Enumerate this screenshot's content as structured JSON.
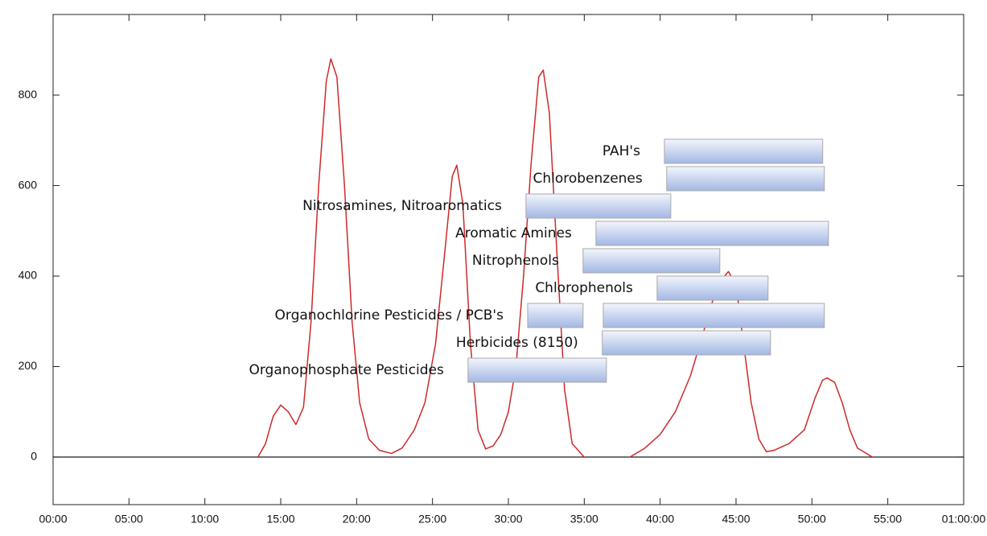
{
  "chart_data": [
    {
      "type": "line",
      "color": "#cc2a2a",
      "x": [
        13.5,
        14,
        14.5,
        15,
        15.5,
        16,
        16.5,
        17,
        17.5,
        18,
        18.3,
        18.7,
        19.2,
        19.7,
        20.2,
        20.8,
        21.5,
        22.3,
        23,
        23.8,
        24.5,
        25.2,
        25.8,
        26.3,
        26.6,
        27,
        27.5,
        28,
        28.5,
        29,
        29.5,
        30,
        30.5,
        31,
        31.5,
        32,
        32.3,
        32.7,
        33.2,
        33.7,
        34.2,
        35,
        36.5,
        38,
        39,
        40,
        41,
        42,
        42.8,
        43.5,
        44,
        44.5,
        45,
        45.5,
        46,
        46.5,
        47,
        47.5,
        48.5,
        49.5,
        50.2,
        50.7,
        51,
        51.5,
        52,
        52.5,
        53,
        54
      ],
      "values": [
        0,
        30,
        90,
        115,
        100,
        72,
        110,
        300,
        600,
        830,
        880,
        840,
        600,
        300,
        120,
        40,
        15,
        8,
        20,
        60,
        120,
        250,
        450,
        620,
        645,
        560,
        250,
        60,
        18,
        25,
        50,
        100,
        200,
        400,
        650,
        840,
        855,
        760,
        450,
        150,
        30,
        0,
        null,
        0,
        20,
        50,
        100,
        180,
        270,
        350,
        390,
        410,
        380,
        250,
        120,
        40,
        12,
        15,
        30,
        60,
        130,
        170,
        175,
        165,
        120,
        60,
        20,
        0
      ],
      "xlim": [
        0,
        60
      ],
      "xticks": [
        {
          "value": 0,
          "label": "00:00"
        },
        {
          "value": 5,
          "label": "05:00"
        },
        {
          "value": 10,
          "label": "10:00"
        },
        {
          "value": 15,
          "label": "15:00"
        },
        {
          "value": 20,
          "label": "20:00"
        },
        {
          "value": 25,
          "label": "25:00"
        },
        {
          "value": 30,
          "label": "30:00"
        },
        {
          "value": 35,
          "label": "35:00"
        },
        {
          "value": 40,
          "label": "40:00"
        },
        {
          "value": 45,
          "label": "45:00"
        },
        {
          "value": 50,
          "label": "50:00"
        },
        {
          "value": 55,
          "label": "55:00"
        },
        {
          "value": 60,
          "label": "01:00:00"
        }
      ],
      "ylim": [
        -105,
        978
      ],
      "yticks": [
        0,
        200,
        400,
        600,
        800
      ]
    },
    {
      "type": "range",
      "color": "#a3b8e4",
      "series": [
        {
          "name": "PAH's",
          "ranges": [
            [
              40.28,
              50.71
            ]
          ]
        },
        {
          "name": "Chlorobenzenes",
          "ranges": [
            [
              40.43,
              50.82
            ]
          ]
        },
        {
          "name": "Nitrosamines, Nitroaromatics",
          "ranges": [
            [
              31.16,
              40.7
            ]
          ]
        },
        {
          "name": "Aromatic Amines",
          "ranges": [
            [
              35.77,
              51.09
            ]
          ]
        },
        {
          "name": "Nitrophenols",
          "ranges": [
            [
              34.92,
              43.93
            ]
          ]
        },
        {
          "name": "Chlorophenols",
          "ranges": [
            [
              39.8,
              47.11
            ]
          ]
        },
        {
          "name": "Organochlorine Pesticides / PCB's",
          "ranges": [
            [
              31.27,
              34.92
            ],
            [
              36.25,
              50.82
            ]
          ]
        },
        {
          "name": "Herbicides (8150)",
          "ranges": [
            [
              36.19,
              47.27
            ]
          ]
        },
        {
          "name": "Organophosphate Pesticides",
          "ranges": [
            [
              27.34,
              36.46
            ]
          ]
        }
      ]
    }
  ]
}
